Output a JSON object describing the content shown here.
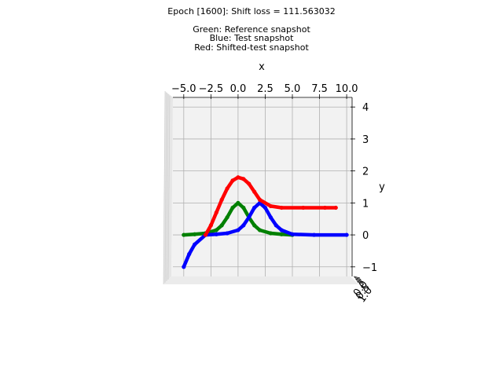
{
  "figure": {
    "title_lines": [
      "Epoch [1600]: Shift loss = 111.563032",
      "",
      "Green: Reference snapshot",
      "Blue: Test snapshot",
      "Red: Shifted-test snapshot"
    ]
  },
  "chart_data": {
    "type": "scatter",
    "title": "Epoch [1600]: Shift loss = 111.563032",
    "xlabel": "x",
    "ylabel": "y",
    "xlim": [
      -6,
      10.5
    ],
    "ylim": [
      -1.3,
      4.3
    ],
    "xticks": [
      -5.0,
      -2.5,
      0.0,
      2.5,
      5.0,
      7.5,
      10.0
    ],
    "xtick_labels": [
      "−5.0",
      "−2.5",
      "0.0",
      "2.5",
      "5.0",
      "7.5",
      "10.0"
    ],
    "yticks": [
      -1,
      0,
      1,
      2,
      3,
      4
    ],
    "ytick_labels": [
      "−1",
      "0",
      "1",
      "2",
      "3",
      "4"
    ],
    "ztick_labels": [
      "0.0",
      "0.5",
      "1.0"
    ],
    "grid": true,
    "series": [
      {
        "color": "#008000",
        "x": [
          -5.0,
          -4.0,
          -3.0,
          -2.0,
          -1.5,
          -1.0,
          -0.5,
          0.0,
          0.5,
          1.0,
          1.5,
          2.0,
          3.0,
          4.0,
          5.0
        ],
        "y": [
          0.0,
          0.02,
          0.05,
          0.15,
          0.3,
          0.55,
          0.85,
          1.0,
          0.85,
          0.55,
          0.3,
          0.15,
          0.05,
          0.02,
          0.0
        ]
      },
      {
        "color": "#0000ff",
        "x": [
          -5.0,
          -4.5,
          -4.0,
          -3.0,
          -2.0,
          -1.0,
          0.0,
          0.5,
          1.0,
          1.5,
          2.0,
          2.5,
          3.0,
          3.5,
          4.0,
          5.0,
          7.0,
          10.0
        ],
        "y": [
          -1.0,
          -0.6,
          -0.3,
          0.0,
          0.02,
          0.05,
          0.15,
          0.3,
          0.55,
          0.85,
          1.0,
          0.85,
          0.55,
          0.3,
          0.15,
          0.02,
          0.0,
          0.0
        ]
      },
      {
        "color": "#ff0000",
        "x": [
          -3.0,
          -2.5,
          -2.0,
          -1.5,
          -1.0,
          -0.5,
          0.0,
          0.5,
          1.0,
          1.5,
          2.0,
          3.0,
          4.0,
          6.0,
          8.0,
          9.0
        ],
        "y": [
          0.0,
          0.3,
          0.7,
          1.1,
          1.45,
          1.7,
          1.8,
          1.75,
          1.6,
          1.35,
          1.1,
          0.9,
          0.85,
          0.85,
          0.85,
          0.85
        ]
      }
    ]
  }
}
